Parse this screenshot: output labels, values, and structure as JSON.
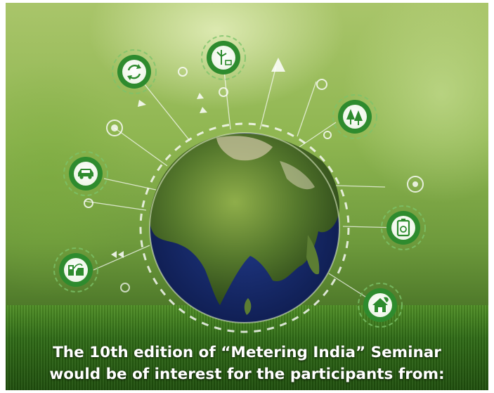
{
  "caption": {
    "line1": "The 10th edition of “Metering India” Seminar",
    "line2": "would be  of interest for the participants from:"
  },
  "colors": {
    "icon_green": "#2e8b2e",
    "icon_ring": "#7cc36a",
    "text": "#ffffff"
  },
  "icons": [
    {
      "name": "recycle-icon"
    },
    {
      "name": "wind-turbine-icon"
    },
    {
      "name": "forest-icon"
    },
    {
      "name": "electric-car-icon"
    },
    {
      "name": "energy-cell-icon"
    },
    {
      "name": "ev-charging-icon"
    },
    {
      "name": "green-home-icon"
    }
  ]
}
